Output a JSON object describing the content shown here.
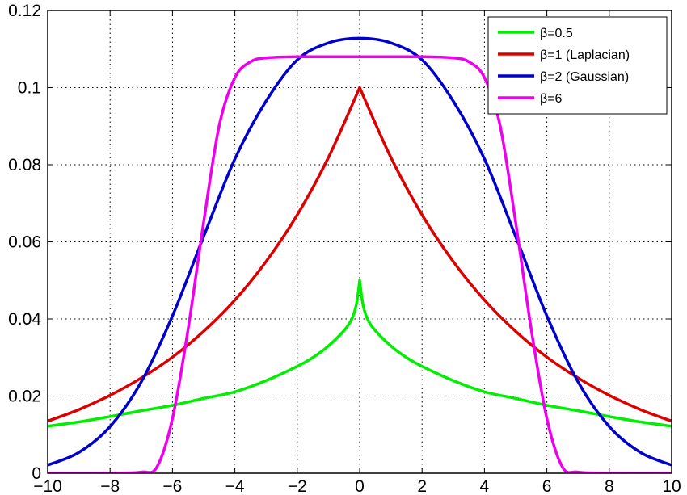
{
  "chart_data": {
    "type": "line",
    "title": "",
    "xlabel": "",
    "ylabel": "",
    "xlim": [
      -10,
      10
    ],
    "ylim": [
      0,
      0.12
    ],
    "xticks": [
      -10,
      -8,
      -6,
      -4,
      -2,
      0,
      2,
      4,
      6,
      8,
      10
    ],
    "xtick_labels": [
      "−10",
      "−8",
      "−6",
      "−4",
      "−2",
      "0",
      "2",
      "4",
      "6",
      "8",
      "10"
    ],
    "yticks": [
      0,
      0.02,
      0.04,
      0.06,
      0.08,
      0.1,
      0.12
    ],
    "ytick_labels": [
      "0",
      "0.02",
      "0.04",
      "0.06",
      "0.08",
      "0.1",
      "0.12"
    ],
    "grid": true,
    "legend_position": "top-right",
    "series": [
      {
        "name": "β=0.5",
        "color": "#00ee00",
        "x": [
          -10,
          -9,
          -8,
          -7,
          -6,
          -5,
          -4,
          -3,
          -2,
          -1.5,
          -1,
          -0.5,
          -0.25,
          -0.1,
          0,
          0.1,
          0.25,
          0.5,
          1,
          1.5,
          2,
          3,
          4,
          5,
          6,
          7,
          8,
          9,
          10
        ],
        "y": [
          0.0122,
          0.0133,
          0.0147,
          0.0162,
          0.0176,
          0.0194,
          0.0211,
          0.024,
          0.0277,
          0.03,
          0.033,
          0.037,
          0.04,
          0.044,
          0.05,
          0.044,
          0.04,
          0.037,
          0.033,
          0.03,
          0.0277,
          0.024,
          0.0211,
          0.0194,
          0.0176,
          0.0162,
          0.0147,
          0.0133,
          0.0122
        ]
      },
      {
        "name": "β=1 (Laplacian)",
        "color": "#dd0000",
        "x": [
          -10,
          -9,
          -8,
          -7,
          -6,
          -5,
          -4,
          -3,
          -2,
          -1,
          0,
          1,
          2,
          3,
          4,
          5,
          6,
          7,
          8,
          9,
          10
        ],
        "y": [
          0.0135,
          0.0165,
          0.0202,
          0.0247,
          0.0301,
          0.0368,
          0.0449,
          0.0549,
          0.067,
          0.0819,
          0.1,
          0.0819,
          0.067,
          0.0549,
          0.0449,
          0.0368,
          0.0301,
          0.0247,
          0.0202,
          0.0165,
          0.0135
        ]
      },
      {
        "name": "β=2 (Gaussian)",
        "color": "#0000cc",
        "x": [
          -10,
          -9,
          -8,
          -7,
          -6,
          -5,
          -4,
          -3,
          -2,
          -1,
          0,
          1,
          2,
          3,
          4,
          5,
          6,
          7,
          8,
          9,
          10
        ],
        "y": [
          0.0021,
          0.0054,
          0.0121,
          0.0237,
          0.0408,
          0.0614,
          0.0815,
          0.0965,
          0.1072,
          0.1116,
          0.1128,
          0.1116,
          0.1072,
          0.0965,
          0.0815,
          0.0614,
          0.0408,
          0.0237,
          0.0121,
          0.0054,
          0.0021
        ]
      },
      {
        "name": "β=6",
        "color": "#ee00ee",
        "x": [
          -10,
          -8,
          -7,
          -6.5,
          -6,
          -5.5,
          -5,
          -4.5,
          -4,
          -3.5,
          -3,
          -2,
          0,
          2,
          3,
          3.5,
          4,
          4.5,
          5,
          5.5,
          6,
          6.5,
          7,
          8,
          10
        ],
        "y": [
          0,
          0,
          0.0003,
          0.0016,
          0.0142,
          0.0373,
          0.0651,
          0.0902,
          0.1026,
          0.1067,
          0.1077,
          0.108,
          0.108,
          0.108,
          0.1077,
          0.1067,
          0.1026,
          0.0902,
          0.0651,
          0.0373,
          0.0142,
          0.0016,
          0.0003,
          0,
          0
        ]
      }
    ]
  }
}
